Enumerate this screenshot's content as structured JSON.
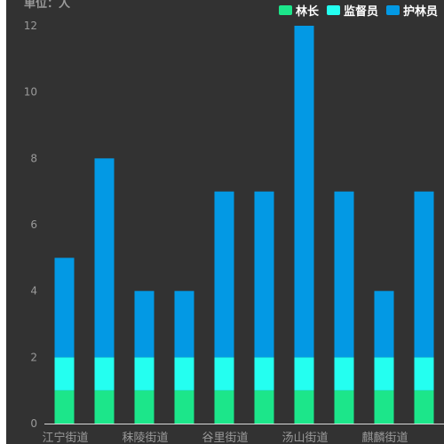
{
  "chart_data": {
    "type": "bar",
    "stacked": true,
    "unit_label": "单位：人",
    "categories": [
      "江宁街道",
      "",
      "秣陵街道",
      "",
      "谷里街道",
      "",
      "汤山街道",
      "",
      "麒麟街道",
      ""
    ],
    "series": [
      {
        "name": "林长",
        "color": "#1ce68a",
        "values": [
          1,
          1,
          1,
          1,
          1,
          1,
          1,
          1,
          1,
          1
        ]
      },
      {
        "name": "监督员",
        "color": "#24fff0",
        "values": [
          1,
          1,
          1,
          1,
          1,
          1,
          1,
          1,
          1,
          1
        ]
      },
      {
        "name": "护林员",
        "color": "#0399e4",
        "values": [
          3,
          6,
          2,
          2,
          5,
          5,
          10,
          5,
          2,
          5
        ]
      }
    ],
    "ylim": [
      0,
      12
    ],
    "yticks": [
      0,
      2,
      4,
      6,
      8,
      10,
      12
    ],
    "grid": false,
    "legend_position": "top-right",
    "colors": {
      "background": "#323232",
      "axis_text": "#9a9a9a",
      "axis_line": "#d8d8d8",
      "legend_text": "#ffffff"
    }
  }
}
